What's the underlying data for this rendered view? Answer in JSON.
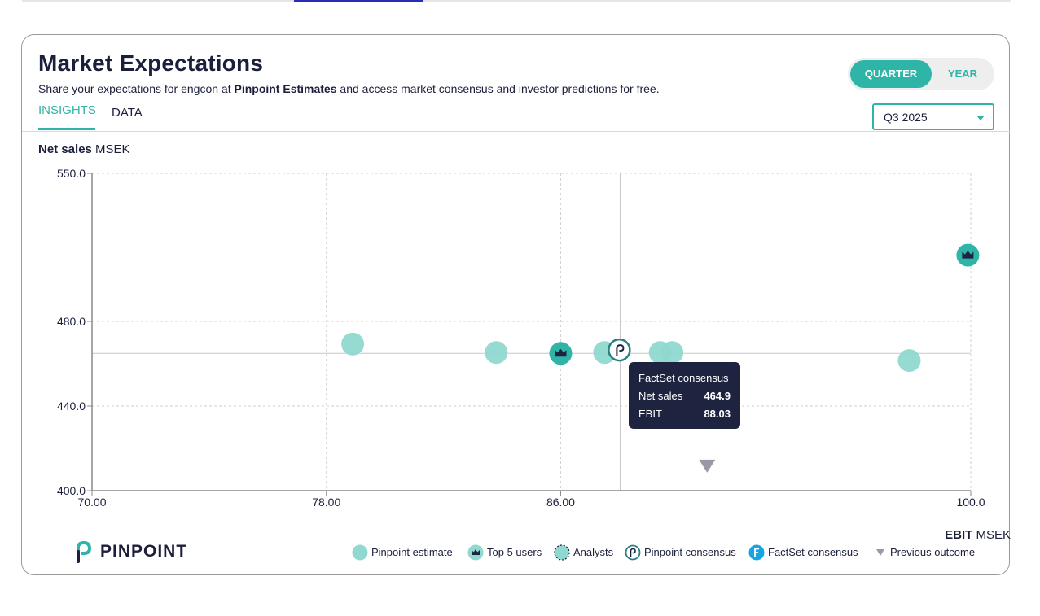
{
  "header": {
    "title": "Market Expectations",
    "subtitle_pre": "Share your expectations for engcon at ",
    "subtitle_bold": "Pinpoint Estimates",
    "subtitle_post": " and access market consensus and investor predictions for free."
  },
  "tabs": [
    {
      "label": "INSIGHTS",
      "active": true
    },
    {
      "label": "DATA",
      "active": false
    }
  ],
  "period_toggle": {
    "quarter": "QUARTER",
    "year": "YEAR",
    "selected": "QUARTER"
  },
  "period_select": {
    "value": "Q3 2025"
  },
  "axis": {
    "y_bold": "Net sales",
    "y_unit": "MSEK",
    "x_bold": "EBIT",
    "x_unit": "MSEK"
  },
  "tooltip": {
    "title": "FactSet consensus",
    "rows": [
      {
        "label": "Net sales",
        "value": "464.9"
      },
      {
        "label": "EBIT",
        "value": "88.03"
      }
    ]
  },
  "brand": {
    "name": "PINPOINT"
  },
  "legend": [
    "Pinpoint estimate",
    "Top 5 users",
    "Analysts",
    "Pinpoint consensus",
    "FactSet consensus",
    "Previous outcome"
  ],
  "colors": {
    "teal": "#2fb4a8",
    "teal_light": "#8fd9d0",
    "navy": "#1e2340",
    "triangle": "#9a9aa6",
    "factset": "#1aa3e0"
  },
  "chart_data": {
    "type": "scatter",
    "xlabel": "EBIT MSEK",
    "ylabel": "Net sales MSEK",
    "xlim": [
      70,
      100
    ],
    "ylim": [
      400,
      550
    ],
    "x_tick_labels": [
      "70.00",
      "78.00",
      "86.00",
      "100.0"
    ],
    "x_tick_values": [
      70,
      78,
      86,
      100
    ],
    "y_tick_labels": [
      "550.0",
      "480.0",
      "440.0",
      "400.0"
    ],
    "y_tick_values": [
      550,
      480,
      440,
      400
    ],
    "grid": true,
    "series": [
      {
        "name": "Pinpoint estimate",
        "points": [
          [
            78.9,
            469.3
          ],
          [
            83.8,
            465.3
          ],
          [
            87.5,
            465.3
          ],
          [
            89.4,
            465.3
          ],
          [
            89.8,
            465.3
          ],
          [
            97.9,
            461.5
          ]
        ]
      },
      {
        "name": "Top 5 users",
        "points": [
          [
            86.0,
            464.9
          ],
          [
            99.9,
            511.3
          ]
        ]
      },
      {
        "name": "Pinpoint consensus",
        "points": [
          [
            88.0,
            466.5
          ]
        ]
      },
      {
        "name": "FactSet consensus",
        "points": [
          [
            88.03,
            464.9
          ]
        ]
      },
      {
        "name": "Previous outcome",
        "points": [
          [
            91.0,
            411.6
          ]
        ]
      }
    ],
    "crosshair": {
      "x": 88.03,
      "y": 464.9
    }
  }
}
